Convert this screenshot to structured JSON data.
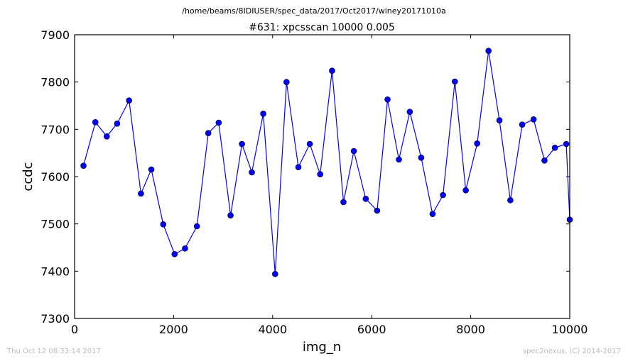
{
  "page": {
    "header_path": "/home/beams/8IDIUSER/spec_data/2017/Oct2017/winey20171010a",
    "timestamp": "Thu Oct 12 08:33:14 2017",
    "credit": "spec2nexus, (C) 2014-2017"
  },
  "chart_data": {
    "type": "line",
    "title": "#631: xpcsscan 10000 0.005",
    "xlabel": "img_n",
    "ylabel": "ccdc",
    "xlim": [
      0,
      10000
    ],
    "ylim": [
      7300,
      7900
    ],
    "xticks": [
      0,
      2000,
      4000,
      6000,
      8000,
      10000
    ],
    "yticks": [
      7300,
      7400,
      7500,
      7600,
      7700,
      7800,
      7900
    ],
    "xtick_labels": [
      "0",
      "2000",
      "4000",
      "6000",
      "8000",
      "10000"
    ],
    "ytick_labels": [
      "7300",
      "7400",
      "7500",
      "7600",
      "7700",
      "7800",
      "7900"
    ],
    "grid": false,
    "legend": "none",
    "marker": "circle",
    "color": "#0000ff",
    "series": [
      {
        "x": [
          180,
          420,
          650,
          860,
          1100,
          1340,
          1550,
          1790,
          2020,
          2230,
          2470,
          2700,
          2910,
          3150,
          3380,
          3580,
          3810,
          4050,
          4280,
          4520,
          4750,
          4960,
          5200,
          5430,
          5640,
          5880,
          6110,
          6320,
          6550,
          6770,
          7000,
          7230,
          7440,
          7680,
          7900,
          8130,
          8360,
          8580,
          8800,
          9040,
          9270,
          9490,
          9700,
          9930,
          10000
        ],
        "y": [
          7623,
          7715,
          7685,
          7712,
          7761,
          7564,
          7615,
          7499,
          7436,
          7448,
          7495,
          7692,
          7714,
          7518,
          7669,
          7609,
          7733,
          7394,
          7800,
          7620,
          7669,
          7605,
          7824,
          7546,
          7654,
          7553,
          7528,
          7763,
          7636,
          7737,
          7640,
          7521,
          7561,
          7801,
          7571,
          7670,
          7866,
          7719,
          7550,
          7710,
          7721,
          7634,
          7661,
          7669,
          7509
        ]
      }
    ]
  }
}
